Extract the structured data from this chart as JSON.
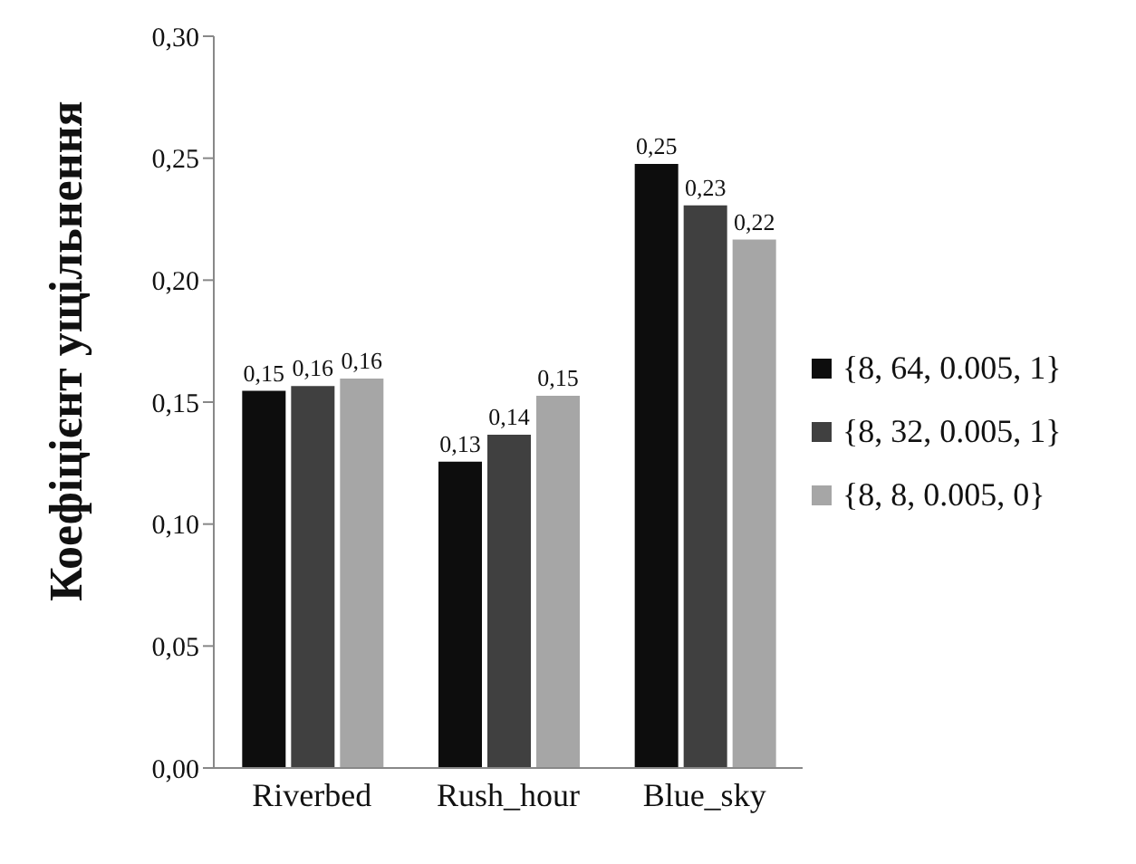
{
  "chart_data": {
    "type": "bar",
    "ylabel": "Коефіцієнт ущільнення",
    "categories": [
      "Riverbed",
      "Rush_hour",
      "Blue_sky"
    ],
    "series": [
      {
        "name": "{8, 64, 0.005, 1}",
        "color": "#0d0d0d",
        "values": [
          0.155,
          0.126,
          0.248
        ],
        "value_labels": [
          "0,15",
          "0,13",
          "0,25"
        ]
      },
      {
        "name": "{8, 32, 0.005, 1}",
        "color": "#404040",
        "values": [
          0.157,
          0.137,
          0.231
        ],
        "value_labels": [
          "0,16",
          "0,14",
          "0,23"
        ]
      },
      {
        "name": "{8, 8, 0.005, 0}",
        "color": "#a6a6a6",
        "values": [
          0.16,
          0.153,
          0.217
        ],
        "value_labels": [
          "0,16",
          "0,15",
          "0,22"
        ]
      }
    ],
    "ylim": [
      0,
      0.3
    ],
    "yticks": [
      {
        "value": 0,
        "label": "0,00"
      },
      {
        "value": 0.05,
        "label": "0,05"
      },
      {
        "value": 0.1,
        "label": "0,10"
      },
      {
        "value": 0.15,
        "label": "0,15"
      },
      {
        "value": 0.2,
        "label": "0,20"
      },
      {
        "value": 0.25,
        "label": "0,25"
      },
      {
        "value": 0.3,
        "label": "0,30"
      }
    ],
    "grid": false,
    "legend": "right"
  }
}
